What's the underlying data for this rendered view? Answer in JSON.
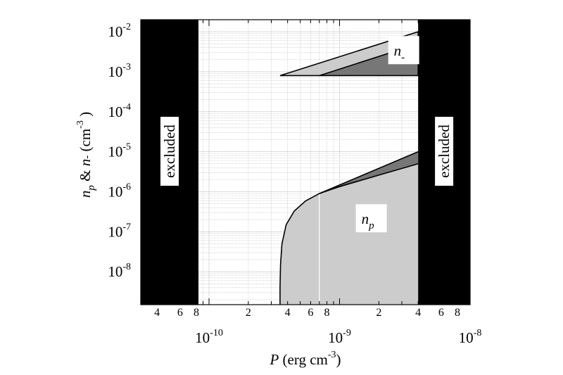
{
  "chart_data": {
    "type": "area",
    "xscale": "log",
    "yscale": "log",
    "xlim": [
      3e-11,
      1e-08
    ],
    "ylim": [
      1.5e-09,
      0.02
    ],
    "grid": true,
    "xlabel": {
      "var": "P",
      "text": " (erg cm",
      "sup": "-3",
      "close": ")"
    },
    "ylabel": {
      "n1": "n",
      "sub": "p",
      "amp": "  &  ",
      "n2": "n",
      "minus": "-",
      "unit": " (cm",
      "sup": "-3",
      "close": " )"
    },
    "x_major_ticks": [
      {
        "value": 1e-10,
        "base": "10",
        "exp": "-10"
      },
      {
        "value": 1e-09,
        "base": "10",
        "exp": "-9"
      },
      {
        "value": 1e-08,
        "base": "10",
        "exp": "-8"
      }
    ],
    "x_minor_tick_labels": [
      {
        "value": 4e-11,
        "label": "4"
      },
      {
        "value": 6e-11,
        "label": "6"
      },
      {
        "value": 8e-11,
        "label": "8"
      },
      {
        "value": 2e-10,
        "label": "2"
      },
      {
        "value": 4e-10,
        "label": "4"
      },
      {
        "value": 6e-10,
        "label": "6"
      },
      {
        "value": 8e-10,
        "label": "8"
      },
      {
        "value": 2e-09,
        "label": "2"
      },
      {
        "value": 4e-09,
        "label": "4"
      },
      {
        "value": 6e-09,
        "label": "6"
      },
      {
        "value": 8e-09,
        "label": "8"
      }
    ],
    "y_major_ticks": [
      {
        "value": 1e-08,
        "base": "10",
        "exp": "-8"
      },
      {
        "value": 1e-07,
        "base": "10",
        "exp": "-7"
      },
      {
        "value": 1e-06,
        "base": "10",
        "exp": "-6"
      },
      {
        "value": 1e-05,
        "base": "10",
        "exp": "-5"
      },
      {
        "value": 0.0001,
        "base": "10",
        "exp": "-4"
      },
      {
        "value": 0.001,
        "base": "10",
        "exp": "-3"
      },
      {
        "value": 0.01,
        "base": "10",
        "exp": "-2"
      }
    ],
    "excluded_regions": [
      {
        "x": [
          3e-11,
          8.3e-11
        ],
        "label": "excluded"
      },
      {
        "x": [
          4e-09,
          1e-08
        ],
        "label": "excluded"
      }
    ],
    "regions": [
      {
        "label_base": "n",
        "label_sub": "p",
        "label_at": [
          1.75e-09,
          2e-07
        ],
        "fill": "#cccccc",
        "polygon": [
          [
            3.5e-10,
            1.5e-09
          ],
          [
            3.5e-10,
            4e-09
          ],
          [
            3.53e-10,
            1.5e-08
          ],
          [
            3.62e-10,
            5e-08
          ],
          [
            3.9e-10,
            1.5e-07
          ],
          [
            4.5e-10,
            3.3e-07
          ],
          [
            5.5e-10,
            5.9e-07
          ],
          [
            7e-10,
            9e-07
          ],
          [
            1e-09,
            1.35e-06
          ],
          [
            2e-09,
            2.6e-06
          ],
          [
            4e-09,
            5e-06
          ],
          [
            4e-09,
            1.5e-09
          ]
        ],
        "outline": [
          [
            3.5e-10,
            1.5e-09
          ],
          [
            3.5e-10,
            4e-09
          ],
          [
            3.53e-10,
            1.5e-08
          ],
          [
            3.62e-10,
            5e-08
          ],
          [
            3.9e-10,
            1.5e-07
          ],
          [
            4.5e-10,
            3.3e-07
          ],
          [
            5.5e-10,
            5.9e-07
          ],
          [
            7e-10,
            9e-07
          ],
          [
            1e-09,
            1.35e-06
          ],
          [
            2e-09,
            2.6e-06
          ],
          [
            4e-09,
            5e-06
          ]
        ]
      },
      {
        "fill": "#777777",
        "polygon": [
          [
            7e-10,
            9e-07
          ],
          [
            4e-09,
            1e-05
          ],
          [
            4e-09,
            5e-06
          ]
        ],
        "outline": [
          [
            7e-10,
            9e-07
          ],
          [
            4e-09,
            1e-05
          ]
        ]
      },
      {
        "label_base": "n",
        "label_sub": "-",
        "label_at": [
          3.1e-09,
          0.0032
        ],
        "fill": "#cccccc",
        "polygon": [
          [
            3.5e-10,
            0.0008
          ],
          [
            4e-09,
            0.01
          ],
          [
            4e-09,
            0.0008
          ]
        ],
        "outline": [
          [
            3.5e-10,
            0.0008
          ],
          [
            4e-09,
            0.01
          ],
          [
            4e-09,
            0.0008
          ],
          [
            3.5e-10,
            0.0008
          ]
        ]
      },
      {
        "fill": "#777777",
        "polygon": [
          [
            7e-10,
            0.0008
          ],
          [
            4e-09,
            0.005
          ],
          [
            4e-09,
            0.0008
          ]
        ],
        "outline": [
          [
            7e-10,
            0.0008
          ],
          [
            4e-09,
            0.005
          ]
        ]
      }
    ],
    "marker_line_x": 7e-10
  }
}
